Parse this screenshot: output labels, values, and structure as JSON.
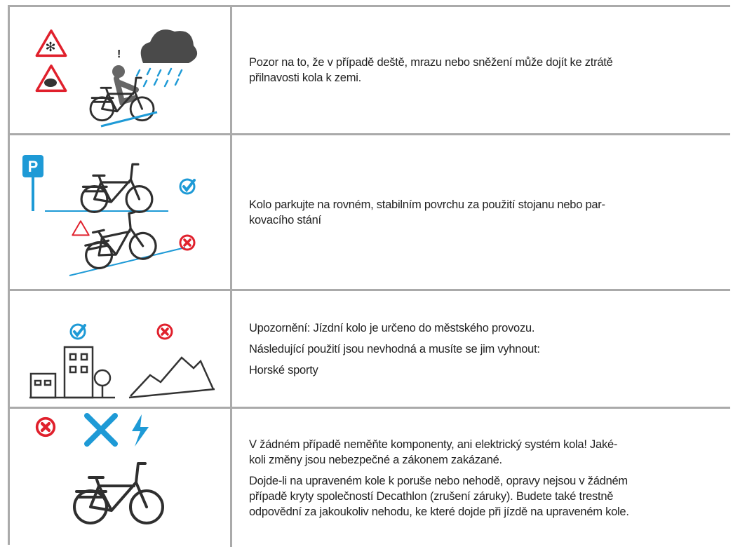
{
  "rows": [
    {
      "paragraphs": [
        {
          "lines": [
            "Pozor na to, že v případě deště, mrazu nebo sněžení může dojít ke ztrátě",
            "přilnavosti kola k zemi."
          ]
        }
      ]
    },
    {
      "paragraphs": [
        {
          "lines": [
            "Kolo parkujte na rovném, stabilním povrchu za použití stojanu nebo par-",
            "kovacího stání"
          ]
        }
      ]
    },
    {
      "paragraphs": [
        {
          "lines": [
            "Upozornění: Jízdní kolo je určeno do městského provozu."
          ]
        },
        {
          "lines": [
            "Následující použití jsou nevhodná a musíte se jim vyhnout:"
          ]
        },
        {
          "lines": [
            "Horské sporty"
          ]
        }
      ]
    },
    {
      "paragraphs": [
        {
          "lines": [
            "V žádném případě neměňte komponenty, ani elektrický systém kola! Jaké-",
            "koli změny jsou nebezpečné a zákonem zakázané."
          ]
        },
        {
          "lines": [
            "Dojde-li na upraveném kole k poruše nebo nehodě, opravy nejsou v žádném",
            "případě kryty společností Decathlon (zrušení záruky). Budete také trestně",
            "odpovědní za jakoukoliv nehodu, ke které dojde při jízdě na upraveném kole."
          ]
        }
      ]
    }
  ]
}
